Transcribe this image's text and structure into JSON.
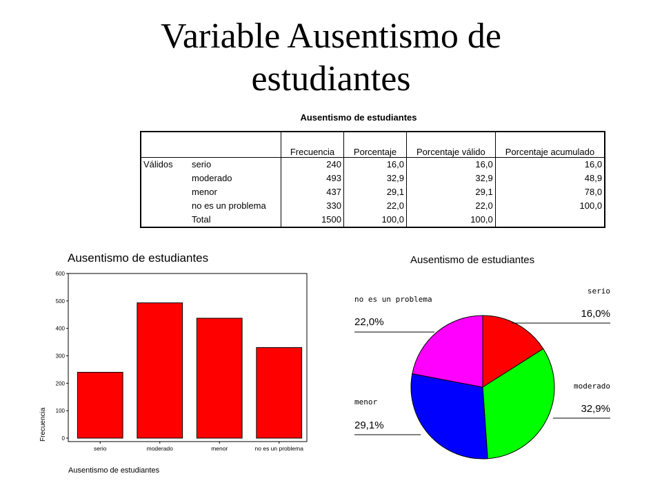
{
  "title": {
    "line1": "Variable Ausentismo de",
    "line2": "estudiantes"
  },
  "table": {
    "caption": "Ausentismo de estudiantes",
    "headers": [
      "Frecuencia",
      "Porcentaje",
      "Porcentaje válido",
      "Porcentaje acumulado"
    ],
    "group_label": "Válidos",
    "rows": [
      {
        "label": "serio",
        "cells": [
          "240",
          "16,0",
          "16,0",
          "16,0"
        ]
      },
      {
        "label": "moderado",
        "cells": [
          "493",
          "32,9",
          "32,9",
          "48,9"
        ]
      },
      {
        "label": "menor",
        "cells": [
          "437",
          "29,1",
          "29,1",
          "78,0"
        ]
      },
      {
        "label": "no es un problema",
        "cells": [
          "330",
          "22,0",
          "22,0",
          "100,0"
        ]
      },
      {
        "label": "Total",
        "cells": [
          "1500",
          "100,0",
          "100,0",
          ""
        ]
      }
    ]
  },
  "chart_data": [
    {
      "type": "bar",
      "title": "Ausentismo de estudiantes",
      "xlabel": "Ausentismo de estudiantes",
      "ylabel": "Frecuencia",
      "categories": [
        "serio",
        "moderado",
        "menor",
        "no es un problema"
      ],
      "values": [
        240,
        493,
        437,
        330
      ],
      "ylim": [
        0,
        600
      ],
      "yticks": [
        "0",
        "100",
        "200",
        "300",
        "400",
        "500",
        "600"
      ],
      "color": "#ff0000"
    },
    {
      "type": "pie",
      "title": "Ausentismo de estudiantes",
      "labels": [
        "serio",
        "moderado",
        "menor",
        "no es un problema"
      ],
      "values": [
        16.0,
        32.9,
        29.1,
        22.0
      ],
      "value_labels": [
        "16,0%",
        "32,9%",
        "29,1%",
        "22,0%"
      ],
      "colors": [
        "#ff0000",
        "#00ff00",
        "#0000ff",
        "#ff00ff"
      ]
    }
  ]
}
